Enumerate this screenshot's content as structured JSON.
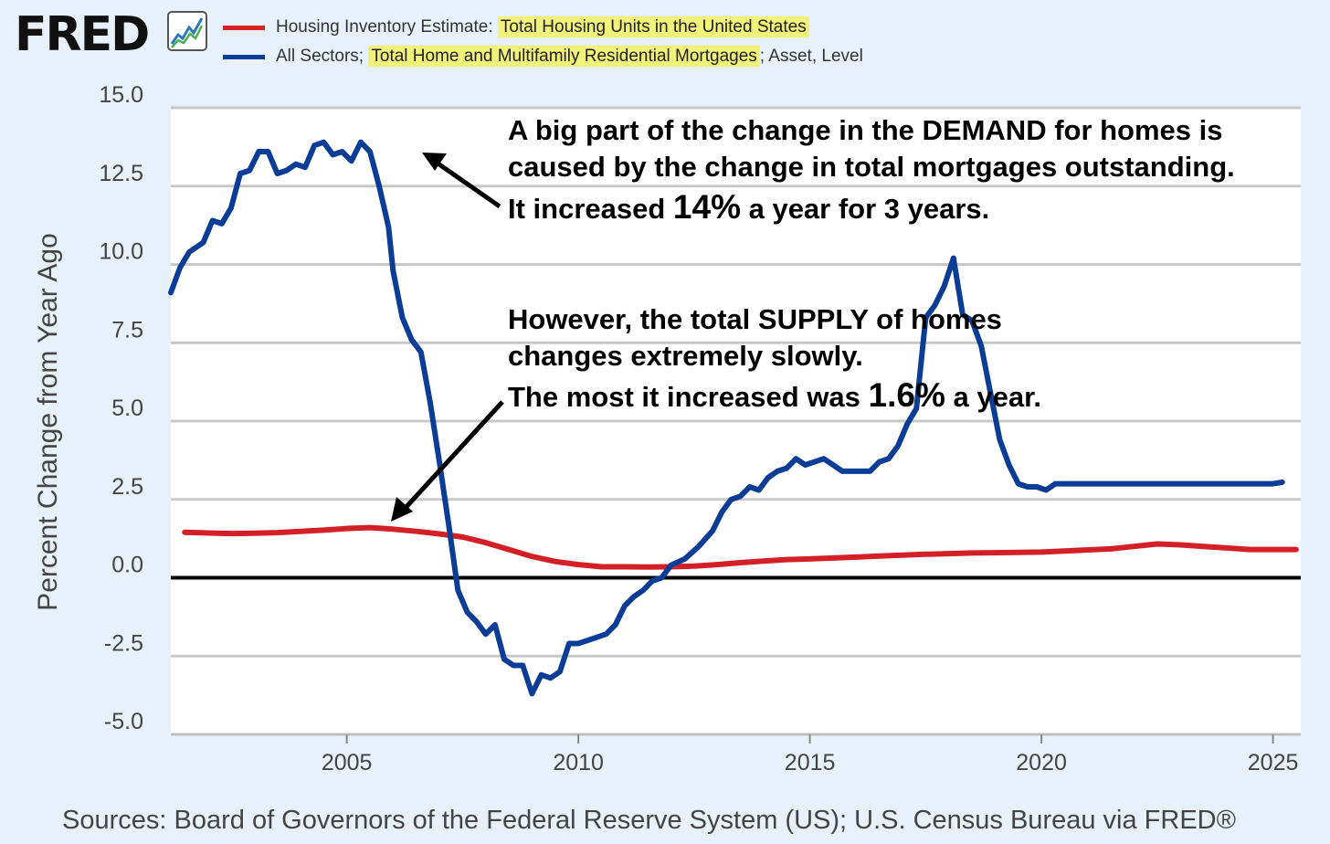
{
  "logo": {
    "text": "FRED",
    "icon": "chart-line-icon"
  },
  "legend": [
    {
      "prefix": "Housing Inventory Estimate: ",
      "highlight": "Total Housing Units in the United States",
      "suffix": "",
      "color": "#d32027"
    },
    {
      "prefix": "All Sectors; ",
      "highlight": "Total Home and Multifamily Residential Mortgages",
      "suffix": "; Asset, Level",
      "color": "#0b3c96"
    }
  ],
  "source": "Sources: Board of Governors of the Federal Reserve System (US); U.S. Census Bureau via FRED®",
  "annotations": {
    "demand": {
      "line1": "A big part of the change in the DEMAND for homes is",
      "line2": "caused by the change in total mortgages outstanding.",
      "line3_a": "It increased ",
      "line3_big": "14%",
      "line3_b": " a year for 3 years."
    },
    "supply": {
      "line1": "However, the total SUPPLY of homes",
      "line2": "changes extremely slowly.",
      "line3_a": "The most it increased was ",
      "line3_big": "1.6%",
      "line3_b": " a year."
    }
  },
  "chart_data": {
    "type": "line",
    "title": "",
    "xlabel": "",
    "ylabel": "Percent Change from Year Ago",
    "xlim": [
      2001.2,
      2025.6
    ],
    "ylim": [
      -5.0,
      15.0
    ],
    "yticks": [
      "15.0",
      "12.5",
      "10.0",
      "7.5",
      "5.0",
      "2.5",
      "0.0",
      "-2.5",
      "-5.0"
    ],
    "xticks": [
      "2005",
      "2010",
      "2015",
      "2020",
      "2025"
    ],
    "grid": true,
    "zero_line": true,
    "series": [
      {
        "name": "Total Home and Multifamily Residential Mortgages",
        "color": "#0b3c96",
        "x": [
          2001.2,
          2001.4,
          2001.6,
          2001.9,
          2002.1,
          2002.3,
          2002.5,
          2002.7,
          2002.9,
          2003.1,
          2003.3,
          2003.5,
          2003.7,
          2003.9,
          2004.1,
          2004.3,
          2004.5,
          2004.7,
          2004.9,
          2005.1,
          2005.3,
          2005.5,
          2005.7,
          2005.9,
          2006.0,
          2006.2,
          2006.4,
          2006.6,
          2006.8,
          2007.0,
          2007.2,
          2007.4,
          2007.6,
          2007.8,
          2008.0,
          2008.2,
          2008.4,
          2008.6,
          2008.8,
          2009.0,
          2009.2,
          2009.4,
          2009.6,
          2009.8,
          2010.0,
          2010.2,
          2010.4,
          2010.6,
          2010.8,
          2011.0,
          2011.2,
          2011.4,
          2011.6,
          2011.8,
          2012.0,
          2012.3,
          2012.6,
          2012.9,
          2013.1,
          2013.3,
          2013.5,
          2013.7,
          2013.9,
          2014.1,
          2014.3,
          2014.5,
          2014.7,
          2014.9,
          2015.1,
          2015.3,
          2015.5,
          2015.7,
          2015.9,
          2016.1,
          2016.3,
          2016.5,
          2016.7,
          2016.9,
          2017.1,
          2017.3,
          2017.5,
          2017.7,
          2017.9,
          2018.1,
          2018.3,
          2018.5,
          2018.7,
          2018.9,
          2019.1,
          2019.3,
          2019.5,
          2019.7,
          2019.9,
          2020.1,
          2020.3,
          2020.5,
          2020.7,
          2020.9,
          2021.1,
          2021.3,
          2021.5,
          2021.7,
          2021.9,
          2022.0,
          2022.2,
          2022.4,
          2022.6,
          2022.8,
          2023.0,
          2023.2,
          2023.4,
          2023.6,
          2023.8,
          2024.0,
          2024.2,
          2024.4,
          2024.6,
          2024.8,
          2025.0,
          2025.2
        ],
        "y": [
          9.1,
          9.9,
          10.4,
          10.7,
          11.4,
          11.3,
          11.8,
          12.9,
          13.0,
          13.6,
          13.6,
          12.9,
          13.0,
          13.2,
          13.1,
          13.8,
          13.9,
          13.5,
          13.6,
          13.3,
          13.9,
          13.6,
          12.5,
          11.2,
          9.8,
          8.3,
          7.6,
          7.2,
          5.6,
          3.7,
          1.7,
          -0.4,
          -1.1,
          -1.4,
          -1.8,
          -1.5,
          -2.6,
          -2.8,
          -2.8,
          -3.7,
          -3.1,
          -3.2,
          -3.0,
          -2.1,
          -2.1,
          -2.0,
          -1.9,
          -1.8,
          -1.5,
          -0.9,
          -0.6,
          -0.4,
          -0.1,
          0.0,
          0.4,
          0.6,
          1.0,
          1.5,
          2.1,
          2.5,
          2.6,
          2.9,
          2.8,
          3.2,
          3.4,
          3.5,
          3.8,
          3.6,
          3.7,
          3.8,
          3.6,
          3.4,
          3.4,
          3.4,
          3.4,
          3.7,
          3.8,
          4.2,
          4.9,
          5.4,
          8.3,
          8.7,
          9.3,
          10.2,
          8.4,
          8.2,
          7.4,
          5.9,
          4.4,
          3.6,
          3.0,
          2.9,
          2.9,
          2.8,
          3.0,
          3.0,
          3.0,
          3.0,
          3.0,
          3.0,
          3.0,
          3.0,
          3.0,
          3.0,
          3.0,
          3.0,
          3.0,
          3.0,
          3.0,
          3.0,
          3.0,
          3.0,
          3.0,
          3.0,
          3.0,
          3.0,
          3.0,
          3.0,
          3.0,
          3.05
        ]
      },
      {
        "name": "Total Housing Units in the United States",
        "color": "#d32027",
        "x": [
          2001.5,
          2002.0,
          2002.5,
          2003.0,
          2003.5,
          2004.0,
          2004.5,
          2005.0,
          2005.5,
          2006.0,
          2006.5,
          2007.0,
          2007.5,
          2008.0,
          2008.5,
          2009.0,
          2009.5,
          2010.0,
          2010.5,
          2011.0,
          2011.5,
          2012.0,
          2012.5,
          2013.0,
          2013.5,
          2014.0,
          2014.5,
          2015.0,
          2015.5,
          2016.0,
          2016.5,
          2017.0,
          2017.5,
          2018.0,
          2018.5,
          2019.0,
          2019.5,
          2020.0,
          2020.5,
          2021.0,
          2021.5,
          2022.0,
          2022.5,
          2023.0,
          2023.5,
          2024.0,
          2024.5,
          2025.0,
          2025.5
        ],
        "y": [
          1.45,
          1.43,
          1.41,
          1.42,
          1.44,
          1.48,
          1.52,
          1.57,
          1.6,
          1.55,
          1.48,
          1.4,
          1.3,
          1.12,
          0.9,
          0.68,
          0.52,
          0.42,
          0.35,
          0.35,
          0.34,
          0.35,
          0.37,
          0.42,
          0.48,
          0.53,
          0.58,
          0.6,
          0.63,
          0.66,
          0.69,
          0.72,
          0.75,
          0.77,
          0.79,
          0.8,
          0.81,
          0.82,
          0.85,
          0.89,
          0.92,
          1.0,
          1.08,
          1.05,
          1.0,
          0.95,
          0.9,
          0.9,
          0.9
        ]
      }
    ]
  }
}
